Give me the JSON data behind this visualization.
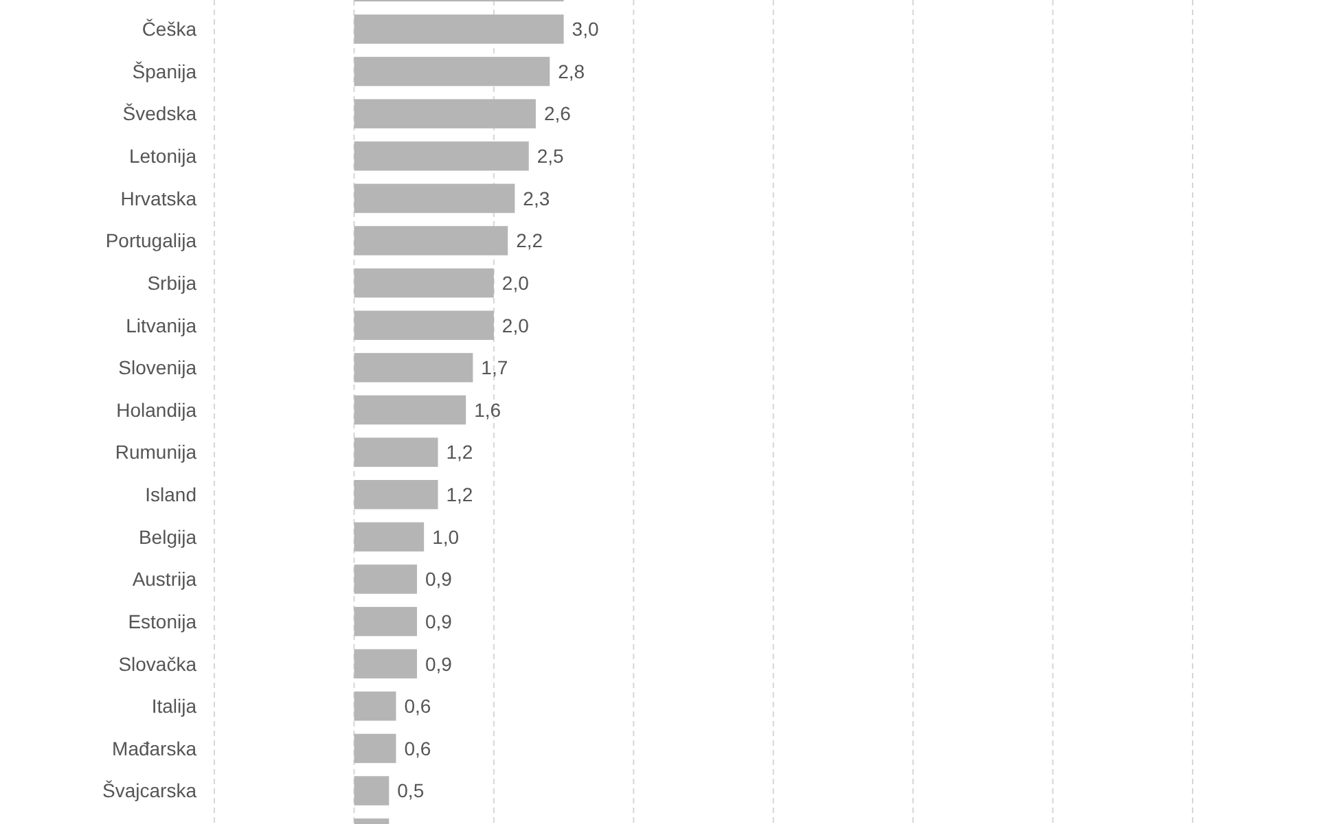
{
  "chart_data": {
    "type": "bar",
    "orientation": "horizontal",
    "categories": [
      null,
      "Češka",
      "Španija",
      "Švedska",
      "Letonija",
      "Hrvatska",
      "Portugalija",
      "Srbija",
      "Litvanija",
      "Slovenija",
      "Holandija",
      "Rumunija",
      "Island",
      "Belgija",
      "Austrija",
      "Estonija",
      "Slovačka",
      "Italija",
      "Mađarska",
      "Švajcarska",
      null
    ],
    "values": [
      3.0,
      3.0,
      2.8,
      2.6,
      2.5,
      2.3,
      2.2,
      2.0,
      2.0,
      1.7,
      1.6,
      1.2,
      1.2,
      1.0,
      0.9,
      0.9,
      0.9,
      0.6,
      0.6,
      0.5,
      0.5
    ],
    "value_labels": [
      null,
      "3,0",
      "2,8",
      "2,6",
      "2,5",
      "2,3",
      "2,2",
      "2,0",
      "2,0",
      "1,7",
      "1,6",
      "1,2",
      "1,2",
      "1,0",
      "0,9",
      "0,9",
      "0,9",
      "0,6",
      "0,6",
      "0,5",
      null
    ],
    "color": "#b5b5b5",
    "xlim": [
      -2,
      12
    ],
    "xticks": [
      {
        "value": -2,
        "label": null
      },
      {
        "value": 0,
        "label": null
      },
      {
        "value": 2,
        "label": null
      },
      {
        "value": 4,
        "label": null
      },
      {
        "value": 6,
        "label": null
      },
      {
        "value": 8,
        "label": null
      },
      {
        "value": 10,
        "label": null
      },
      {
        "value": 12,
        "label": null
      }
    ],
    "grid": true,
    "tick_labels": "y"
  }
}
